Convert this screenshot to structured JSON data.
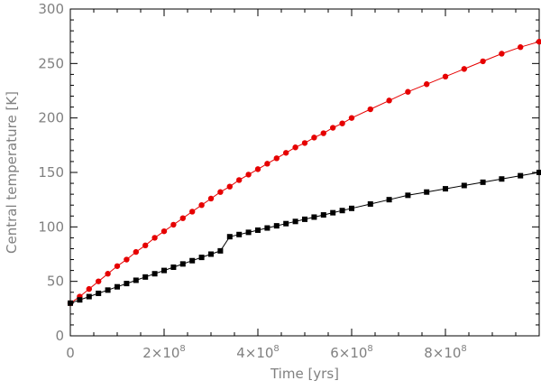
{
  "chart_data": {
    "type": "line",
    "title": "",
    "xlabel": "Time [yrs]",
    "ylabel": "Central temperature [K]",
    "xlim": [
      0,
      1000000000.0
    ],
    "ylim": [
      0,
      300
    ],
    "x_ticks": [
      {
        "value": 0,
        "label": "0"
      },
      {
        "value": 200000000.0,
        "label": "2×10",
        "exp": "8"
      },
      {
        "value": 400000000.0,
        "label": "4×10",
        "exp": "8"
      },
      {
        "value": 600000000.0,
        "label": "6×10",
        "exp": "8"
      },
      {
        "value": 800000000.0,
        "label": "8×10",
        "exp": "8"
      }
    ],
    "y_ticks": [
      0,
      50,
      100,
      150,
      200,
      250,
      300
    ],
    "grid": false,
    "legend": "none",
    "series": [
      {
        "color": "#e60000",
        "marker": "circle",
        "x": [
          0,
          20000000.0,
          40000000.0,
          60000000.0,
          80000000.0,
          100000000.0,
          120000000.0,
          140000000.0,
          160000000.0,
          180000000.0,
          200000000.0,
          220000000.0,
          240000000.0,
          260000000.0,
          280000000.0,
          300000000.0,
          320000000.0,
          340000000.0,
          360000000.0,
          380000000.0,
          400000000.0,
          420000000.0,
          440000000.0,
          460000000.0,
          480000000.0,
          500000000.0,
          520000000.0,
          540000000.0,
          560000000.0,
          580000000.0,
          600000000.0,
          640000000.0,
          680000000.0,
          720000000.0,
          760000000.0,
          800000000.0,
          840000000.0,
          880000000.0,
          920000000.0,
          960000000.0,
          1000000000.0
        ],
        "y": [
          30,
          36,
          43,
          50,
          57,
          64,
          70,
          77,
          83,
          90,
          96,
          102,
          108,
          114,
          120,
          126,
          132,
          137,
          143,
          148,
          153,
          158,
          163,
          168,
          173,
          177,
          182,
          186,
          191,
          195,
          200,
          208,
          216,
          224,
          231,
          238,
          245,
          252,
          259,
          265,
          270
        ]
      },
      {
        "color": "#000000",
        "marker": "square",
        "x": [
          0,
          20000000.0,
          40000000.0,
          60000000.0,
          80000000.0,
          100000000.0,
          120000000.0,
          140000000.0,
          160000000.0,
          180000000.0,
          200000000.0,
          220000000.0,
          240000000.0,
          260000000.0,
          280000000.0,
          300000000.0,
          320000000.0,
          340000000.0,
          360000000.0,
          380000000.0,
          400000000.0,
          420000000.0,
          440000000.0,
          460000000.0,
          480000000.0,
          500000000.0,
          520000000.0,
          540000000.0,
          560000000.0,
          580000000.0,
          600000000.0,
          640000000.0,
          680000000.0,
          720000000.0,
          760000000.0,
          800000000.0,
          840000000.0,
          880000000.0,
          920000000.0,
          960000000.0,
          1000000000.0
        ],
        "y": [
          30,
          33,
          36,
          39,
          42,
          45,
          48,
          51,
          54,
          57,
          60,
          63,
          66,
          69,
          72,
          75,
          78,
          91,
          93,
          95,
          97,
          99,
          101,
          103,
          105,
          107,
          109,
          111,
          113,
          115,
          117,
          121,
          125,
          129,
          132,
          135,
          138,
          141,
          144,
          147,
          150
        ]
      }
    ]
  }
}
